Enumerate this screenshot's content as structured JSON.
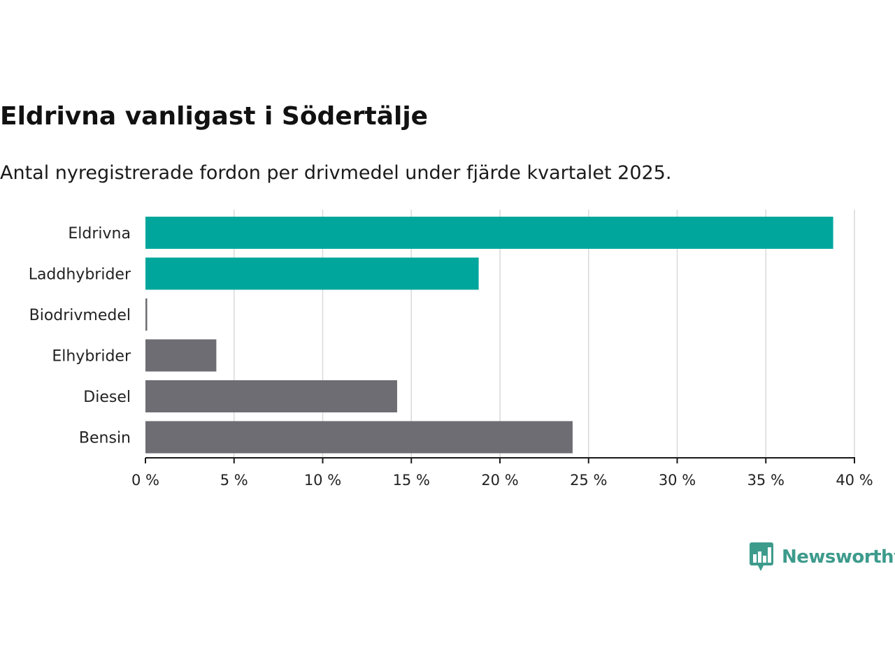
{
  "chart_data": {
    "type": "bar",
    "orientation": "horizontal",
    "title": "Eldrivna vanligast i Södertälje",
    "subtitle": "Antal nyregistrerade fordon per drivmedel under fjärde kvartalet 2025.",
    "categories": [
      "Eldrivna",
      "Laddhybrider",
      "Biodrivmedel",
      "Elhybrider",
      "Diesel",
      "Bensin"
    ],
    "values": [
      38.8,
      18.8,
      0.1,
      4.0,
      14.2,
      24.1
    ],
    "colors": [
      "#00a69c",
      "#00a69c",
      "#6e6d73",
      "#6e6d73",
      "#6e6d73",
      "#6e6d73"
    ],
    "unit": "%",
    "xlim": [
      0,
      40
    ],
    "xticks": [
      0,
      5,
      10,
      15,
      20,
      25,
      30,
      35,
      40
    ],
    "xtick_labels": [
      "0 %",
      "5 %",
      "10 %",
      "15 %",
      "20 %",
      "25 %",
      "30 %",
      "35 %",
      "40 %"
    ],
    "grid": "vertical",
    "xlabel": "",
    "ylabel": ""
  },
  "brand": {
    "name": "Newsworthy",
    "color": "#3d9b8c",
    "icon": "bar-chart-speech-bubble-icon"
  }
}
